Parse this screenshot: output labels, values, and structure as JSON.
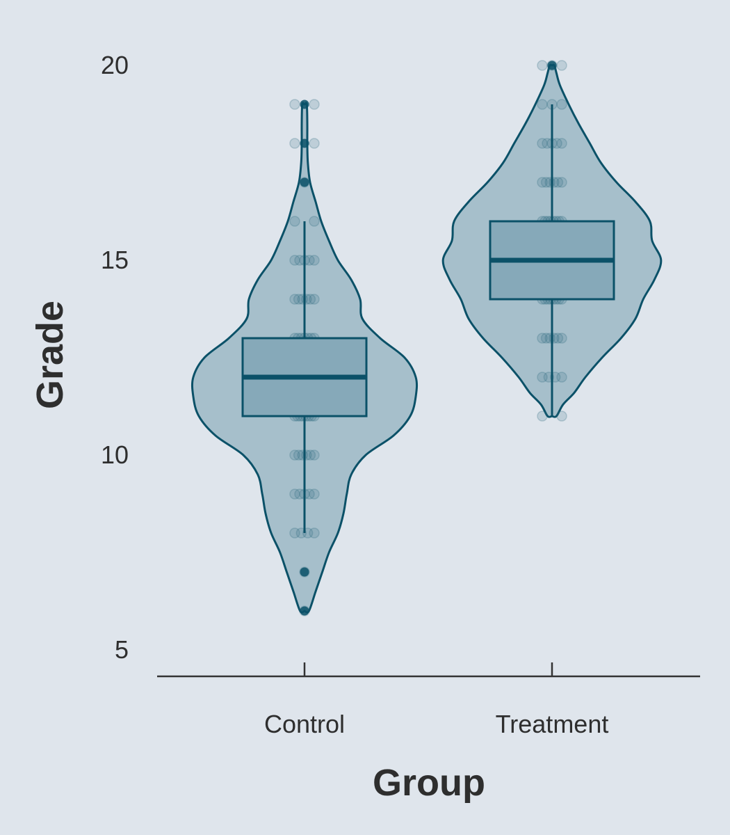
{
  "chart_data": {
    "type": "violin",
    "xlabel": "Group",
    "ylabel": "Grade",
    "ylim": [
      4.3,
      20.5
    ],
    "yticks": [
      5,
      10,
      15,
      20
    ],
    "categories": [
      "Control",
      "Treatment"
    ],
    "colors": {
      "violin_fill": "#a6bfcb",
      "box_fill": "#86a9b9",
      "line": "#0b5168",
      "point": "#2f6c80",
      "axis": "#333333",
      "background": "#dfe5ec"
    },
    "groups": [
      {
        "name": "Control",
        "box": {
          "min": 8,
          "q1": 11,
          "median": 12,
          "q3": 13,
          "max": 16
        },
        "outliers": [
          7,
          6,
          17,
          18,
          19
        ],
        "density": [
          [
            6,
            0.04
          ],
          [
            6.5,
            0.1
          ],
          [
            7,
            0.16
          ],
          [
            7.5,
            0.22
          ],
          [
            8,
            0.3
          ],
          [
            8.5,
            0.35
          ],
          [
            9,
            0.38
          ],
          [
            9.5,
            0.42
          ],
          [
            10,
            0.55
          ],
          [
            10.5,
            0.8
          ],
          [
            11,
            0.95
          ],
          [
            11.5,
            1.0
          ],
          [
            12,
            1.0
          ],
          [
            12.5,
            0.9
          ],
          [
            13,
            0.68
          ],
          [
            13.5,
            0.52
          ],
          [
            14,
            0.5
          ],
          [
            14.5,
            0.42
          ],
          [
            15,
            0.3
          ],
          [
            15.5,
            0.22
          ],
          [
            16,
            0.15
          ],
          [
            16.5,
            0.1
          ],
          [
            17,
            0.05
          ],
          [
            17.5,
            0.03
          ],
          [
            18,
            0.025
          ],
          [
            18.5,
            0.025
          ],
          [
            19,
            0.02
          ]
        ],
        "points": [
          {
            "y": 6,
            "n": 1
          },
          {
            "y": 7,
            "n": 1
          },
          {
            "y": 8,
            "n": 4
          },
          {
            "y": 9,
            "n": 5
          },
          {
            "y": 10,
            "n": 6
          },
          {
            "y": 11,
            "n": 8
          },
          {
            "y": 12,
            "n": 10
          },
          {
            "y": 13,
            "n": 7
          },
          {
            "y": 14,
            "n": 6
          },
          {
            "y": 15,
            "n": 5
          },
          {
            "y": 16,
            "n": 2
          },
          {
            "y": 17,
            "n": 1
          },
          {
            "y": 18,
            "n": 2
          },
          {
            "y": 19,
            "n": 2
          }
        ]
      },
      {
        "name": "Treatment",
        "box": {
          "min": 11,
          "q1": 14,
          "median": 15,
          "q3": 16,
          "max": 19
        },
        "outliers": [
          20
        ],
        "density": [
          [
            11,
            0.04
          ],
          [
            11.3,
            0.1
          ],
          [
            11.6,
            0.2
          ],
          [
            12,
            0.3
          ],
          [
            12.5,
            0.45
          ],
          [
            13,
            0.62
          ],
          [
            13.5,
            0.75
          ],
          [
            14,
            0.82
          ],
          [
            14.5,
            0.92
          ],
          [
            15,
            0.98
          ],
          [
            15.5,
            0.9
          ],
          [
            16,
            0.88
          ],
          [
            16.5,
            0.75
          ],
          [
            17,
            0.58
          ],
          [
            17.5,
            0.44
          ],
          [
            18,
            0.34
          ],
          [
            18.5,
            0.24
          ],
          [
            19,
            0.15
          ],
          [
            19.5,
            0.07
          ],
          [
            19.8,
            0.04
          ],
          [
            20,
            0.02
          ]
        ],
        "points": [
          {
            "y": 11,
            "n": 2
          },
          {
            "y": 12,
            "n": 4
          },
          {
            "y": 13,
            "n": 6
          },
          {
            "y": 14,
            "n": 8
          },
          {
            "y": 15,
            "n": 10
          },
          {
            "y": 16,
            "n": 8
          },
          {
            "y": 17,
            "n": 6
          },
          {
            "y": 18,
            "n": 5
          },
          {
            "y": 19,
            "n": 3
          },
          {
            "y": 20,
            "n": 3
          }
        ]
      }
    ]
  }
}
